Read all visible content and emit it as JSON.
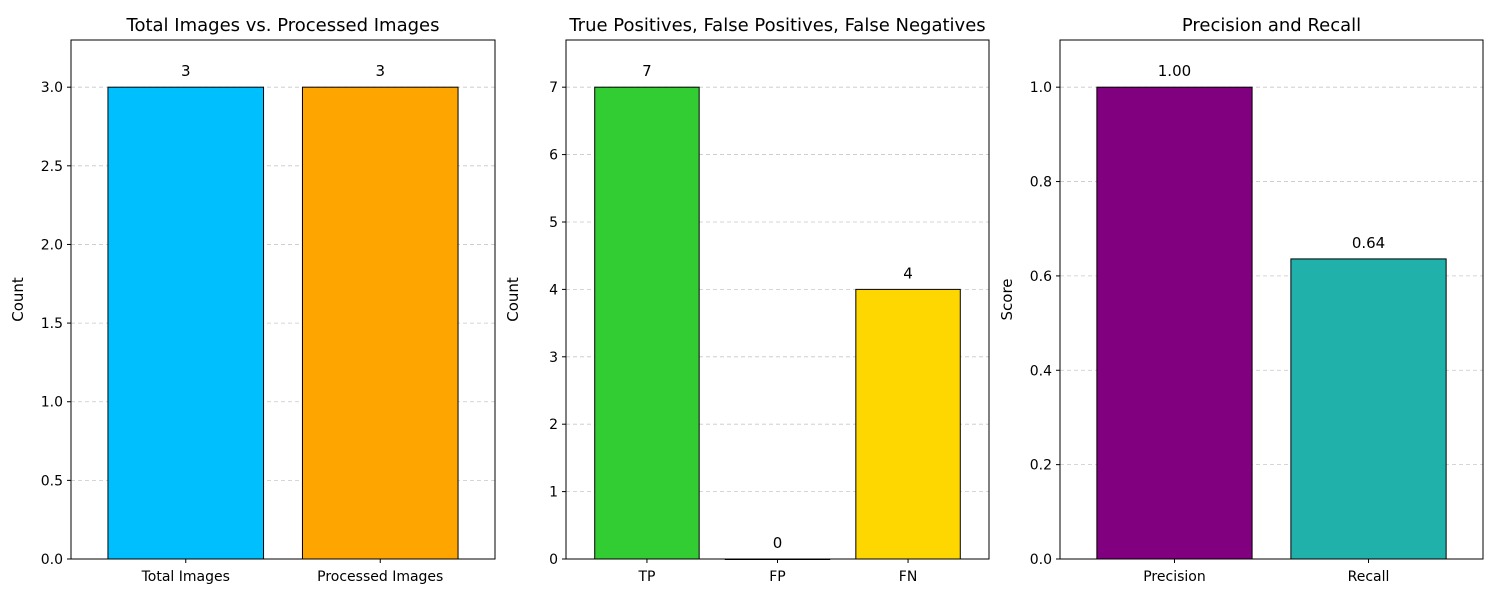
{
  "chart_data": [
    {
      "type": "bar",
      "title": "Total Images vs. Processed Images",
      "xlabel": "",
      "ylabel": "Count",
      "categories": [
        "Total Images",
        "Processed Images"
      ],
      "values": [
        3,
        3
      ],
      "value_labels": [
        "3",
        "3"
      ],
      "colors": [
        "#00BFFF",
        "#FFA500"
      ],
      "ylim": [
        0,
        3.3
      ],
      "yticks": [
        0.0,
        0.5,
        1.0,
        1.5,
        2.0,
        2.5,
        3.0
      ],
      "ytick_labels": [
        "0.0",
        "0.5",
        "1.0",
        "1.5",
        "2.0",
        "2.5",
        "3.0"
      ],
      "grid": "y-dashed",
      "legend": "none"
    },
    {
      "type": "bar",
      "title": "True Positives, False Positives, False Negatives",
      "xlabel": "",
      "ylabel": "Count",
      "categories": [
        "TP",
        "FP",
        "FN"
      ],
      "values": [
        7,
        0,
        4
      ],
      "value_labels": [
        "7",
        "0",
        "4"
      ],
      "colors": [
        "#32CD32",
        "#FF0000",
        "#FFD700"
      ],
      "ylim": [
        0,
        7.7
      ],
      "yticks": [
        0,
        1,
        2,
        3,
        4,
        5,
        6,
        7
      ],
      "ytick_labels": [
        "0",
        "1",
        "2",
        "3",
        "4",
        "5",
        "6",
        "7"
      ],
      "grid": "y-dashed",
      "legend": "none"
    },
    {
      "type": "bar",
      "title": "Precision and Recall",
      "xlabel": "",
      "ylabel": "Score",
      "categories": [
        "Precision",
        "Recall"
      ],
      "values": [
        1.0,
        0.636
      ],
      "value_labels": [
        "1.00",
        "0.64"
      ],
      "colors": [
        "#800080",
        "#20B2AA"
      ],
      "ylim": [
        0,
        1.1
      ],
      "yticks": [
        0.0,
        0.2,
        0.4,
        0.6,
        0.8,
        1.0
      ],
      "ytick_labels": [
        "0.0",
        "0.2",
        "0.4",
        "0.6",
        "0.8",
        "1.0"
      ],
      "grid": "y-dashed",
      "legend": "none"
    }
  ]
}
